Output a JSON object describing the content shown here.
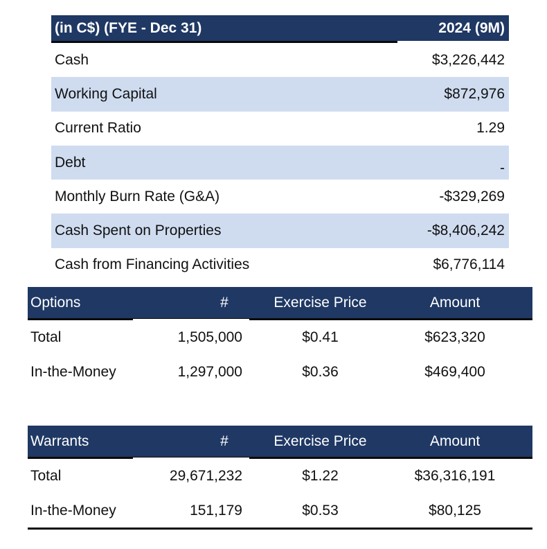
{
  "financials": {
    "header_label": "(in C$) (FYE - Dec 31)",
    "header_period": "2024 (9M)",
    "rows": [
      {
        "label": "Cash",
        "value": "$3,226,442"
      },
      {
        "label": "Working Capital",
        "value": "$872,976"
      },
      {
        "label": "Current Ratio",
        "value": "1.29"
      },
      {
        "label": "Debt",
        "value": "-"
      },
      {
        "label": "Monthly Burn Rate (G&A)",
        "value": "-$329,269"
      },
      {
        "label": "Cash Spent on Properties",
        "value": "-$8,406,242"
      },
      {
        "label": "Cash from Financing Activities",
        "value": "$6,776,114"
      }
    ]
  },
  "options": {
    "headers": [
      "Options",
      "#",
      "Exercise Price",
      "Amount"
    ],
    "rows": [
      {
        "label": "Total",
        "count": "1,505,000",
        "price": "$0.41",
        "amount": "$623,320"
      },
      {
        "label": "In-the-Money",
        "count": "1,297,000",
        "price": "$0.36",
        "amount": "$469,400"
      }
    ]
  },
  "warrants": {
    "headers": [
      "Warrants",
      "#",
      "Exercise Price",
      "Amount"
    ],
    "rows": [
      {
        "label": "Total",
        "count": "29,671,232",
        "price": "$1.22",
        "amount": "$36,316,191"
      },
      {
        "label": "In-the-Money",
        "count": "151,179",
        "price": "$0.53",
        "amount": "$80,125"
      }
    ]
  },
  "colors": {
    "header_bg": "#1f3864",
    "row_shade": "#cfdcf0"
  }
}
